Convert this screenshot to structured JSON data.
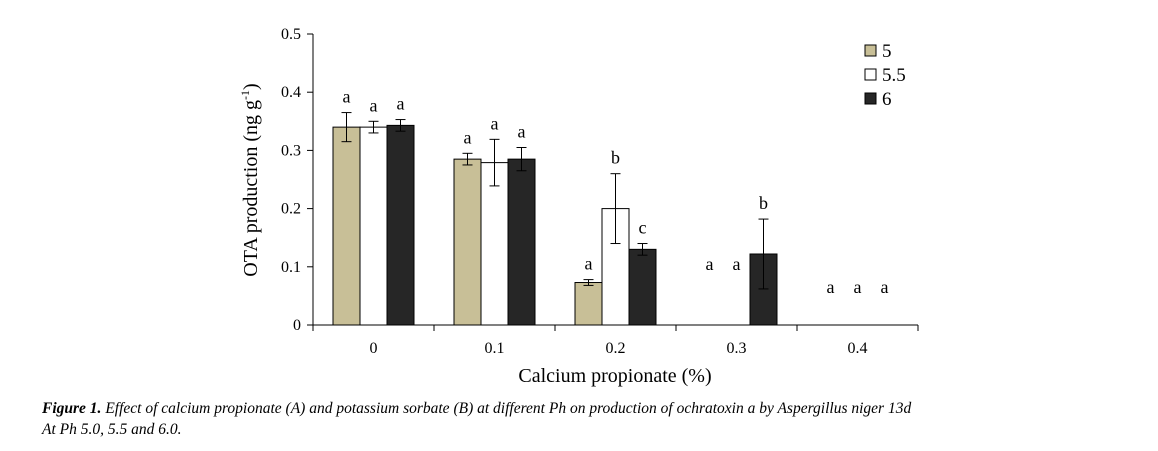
{
  "chart_data": {
    "type": "bar",
    "xlabel": "Calcium propionate (%)",
    "ylabel_main": "OTA production (ng g",
    "ylabel_sup": "-1",
    "ylabel_close": ")",
    "ylim": [
      0,
      0.5
    ],
    "yticks": [
      "0",
      "0.1",
      "0.2",
      "0.3",
      "0.4",
      "0.5"
    ],
    "categories": [
      "0",
      "0.1",
      "0.2",
      "0.3",
      "0.4"
    ],
    "legend_position": "top-right",
    "series": [
      {
        "name": "5",
        "color": "#c8bf97",
        "values": [
          0.34,
          0.285,
          0.073,
          0,
          0
        ],
        "errors": [
          0.025,
          0.01,
          0.005,
          0,
          0
        ],
        "labels": [
          "a",
          "a",
          "a",
          "a",
          "a"
        ]
      },
      {
        "name": "5.5",
        "color": "#ffffff",
        "values": [
          0.34,
          0.279,
          0.2,
          0,
          0
        ],
        "errors": [
          0.01,
          0.04,
          0.06,
          0,
          0
        ],
        "labels": [
          "a",
          "a",
          "b",
          "a",
          "a"
        ]
      },
      {
        "name": "6",
        "color": "#262626",
        "values": [
          0.343,
          0.285,
          0.13,
          0.122,
          0
        ],
        "errors": [
          0.01,
          0.02,
          0.01,
          0.06,
          0
        ],
        "labels": [
          "a",
          "a",
          "c",
          "b",
          "a"
        ]
      }
    ]
  },
  "caption": {
    "label": "Figure 1.",
    "line1": " Effect of calcium propionate (A) and potassium sorbate (B) at different Ph on production of ochratoxin a by Aspergillus niger 13d",
    "line2": "At Ph 5.0, 5.5 and 6.0."
  }
}
